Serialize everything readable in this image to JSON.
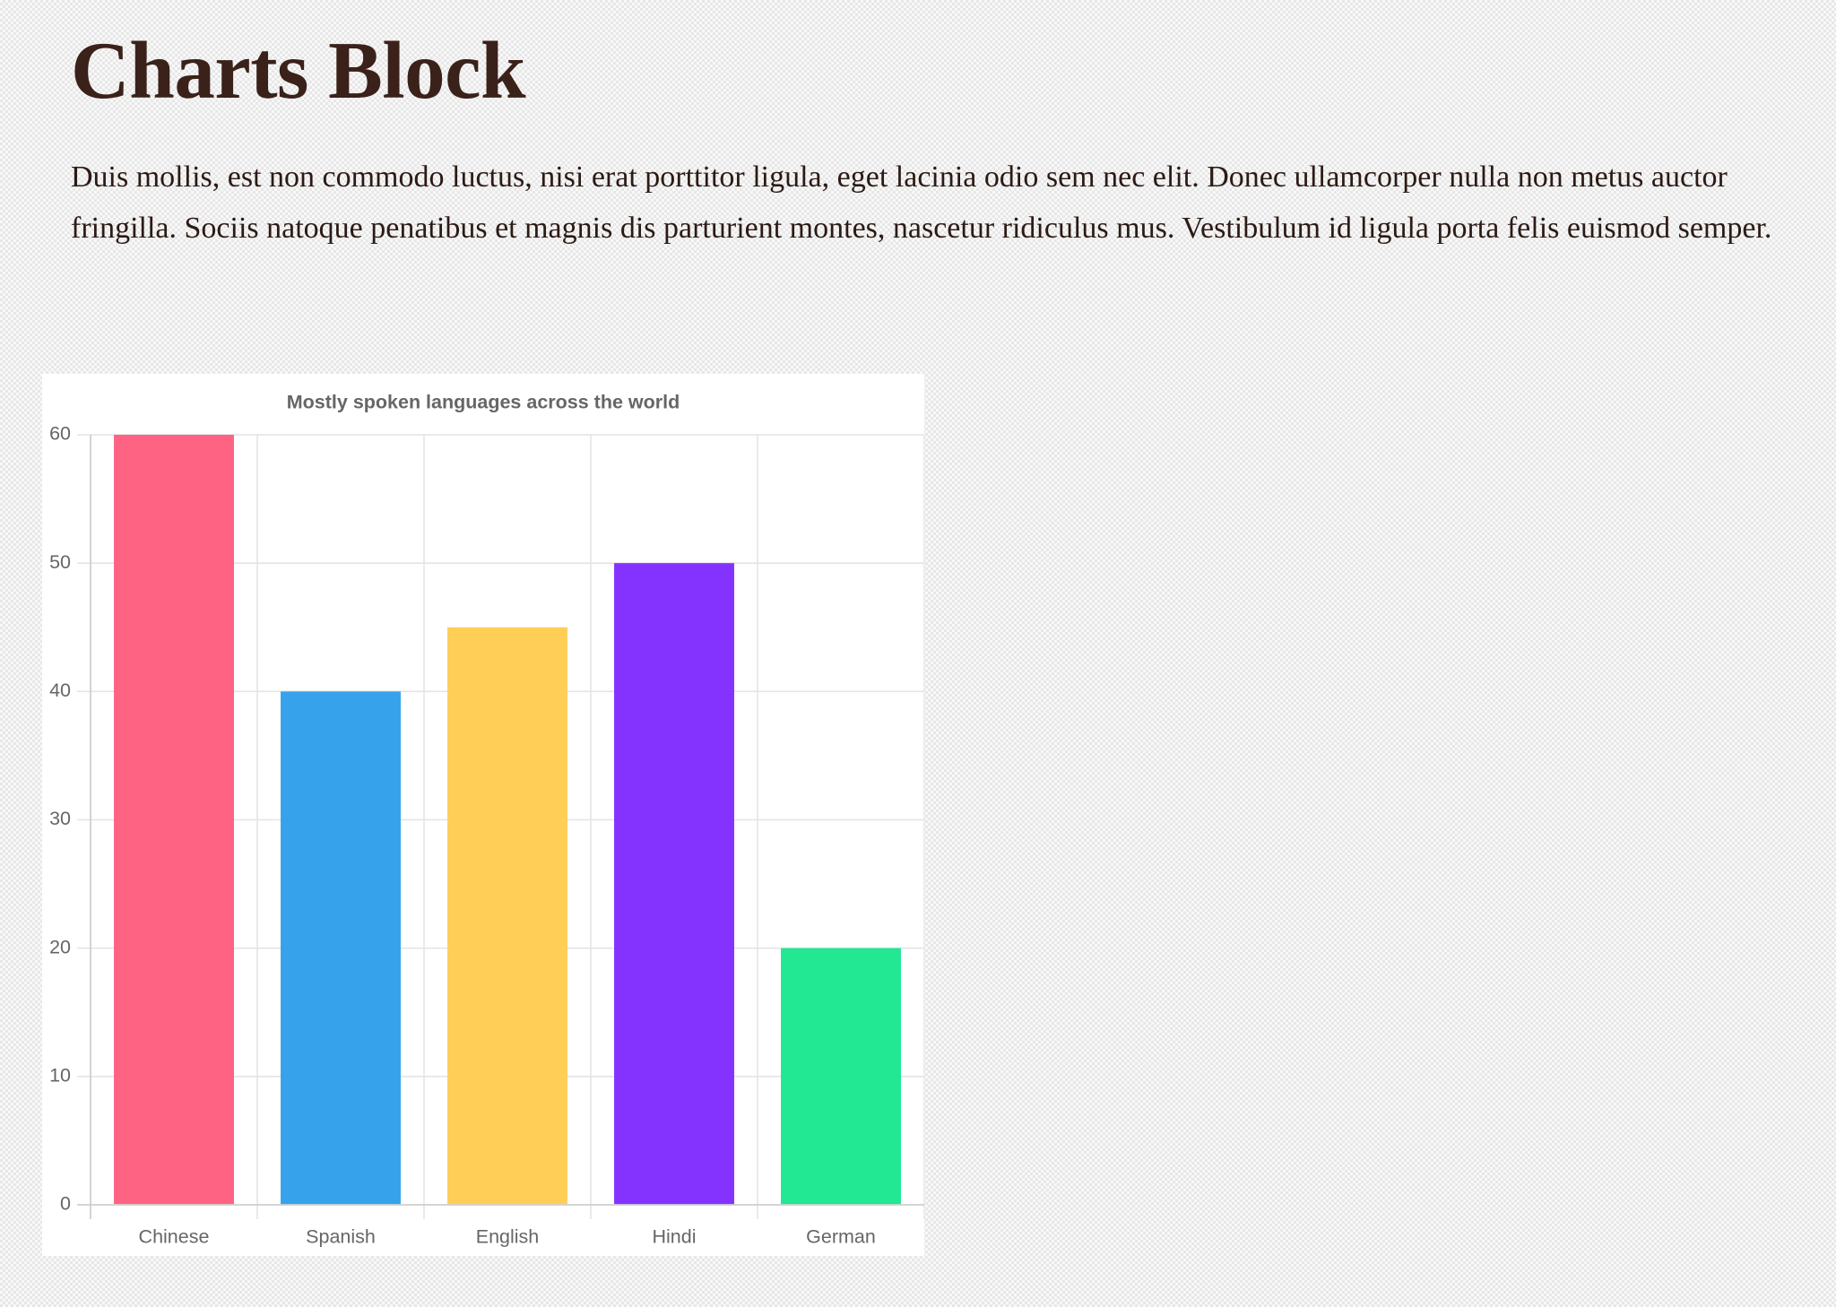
{
  "page": {
    "title": "Charts Block",
    "paragraph": "Duis mollis, est non commodo luctus, nisi erat porttitor ligula, eget lacinia odio sem nec elit. Donec ullamcorper nulla non metus auctor fringilla. Sociis natoque penatibus et magnis dis parturient montes, nascetur ridiculus mus. Vestibulum id ligula porta felis euismod semper."
  },
  "chart_data": {
    "type": "bar",
    "title": "Mostly spoken languages across the world",
    "categories": [
      "Chinese",
      "Spanish",
      "English",
      "Hindi",
      "German"
    ],
    "values": [
      60,
      40,
      45,
      50,
      20
    ],
    "colors": [
      "#FF6384",
      "#36A2EB",
      "#FFCE56",
      "#8433FF",
      "#22E793"
    ],
    "xlabel": "",
    "ylabel": "",
    "ylim": [
      0,
      60
    ],
    "yticks": [
      0,
      10,
      20,
      30,
      40,
      50,
      60
    ],
    "grid": true,
    "legend": "none"
  }
}
